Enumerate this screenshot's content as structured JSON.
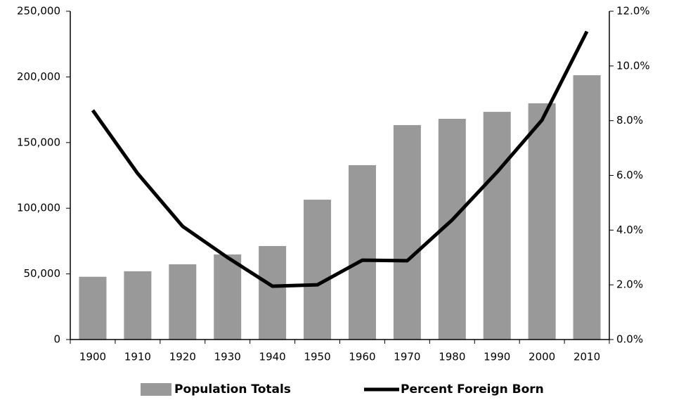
{
  "chart_data": {
    "type": "bar_line",
    "categories": [
      "1900",
      "1910",
      "1920",
      "1930",
      "1940",
      "1950",
      "1960",
      "1970",
      "1980",
      "1990",
      "2000",
      "2010"
    ],
    "series": [
      {
        "name": "Population Totals",
        "type": "bar",
        "color": "#999999",
        "axis": "y",
        "values": [
          47800,
          52000,
          57300,
          64800,
          71200,
          106500,
          132800,
          163300,
          168100,
          173400,
          179900,
          201300
        ]
      },
      {
        "name": "Percent Foreign Born",
        "type": "line",
        "color": "#000000",
        "axis": "y2",
        "values": [
          8.38,
          6.07,
          4.14,
          3.0,
          1.95,
          2.0,
          2.9,
          2.88,
          4.37,
          6.12,
          8.02,
          11.26
        ]
      }
    ],
    "ylim": [
      0,
      250000
    ],
    "yticks": [
      0,
      {
        "value": 50000,
        "label": "50,000"
      },
      {
        "value": 100000,
        "label": "100,000"
      },
      {
        "value": 150000,
        "label": "150,000"
      },
      {
        "value": 200000,
        "label": "200,000"
      },
      {
        "value": 250000,
        "label": "250,000"
      }
    ],
    "y2lim": [
      0,
      12
    ],
    "y2ticks": [
      {
        "value": 0,
        "label": "0.0%"
      },
      {
        "value": 2,
        "label": "2.0%"
      },
      {
        "value": 4,
        "label": "4.0%"
      },
      {
        "value": 6,
        "label": "6.0%"
      },
      {
        "value": 8,
        "label": "8.0%"
      },
      {
        "value": 10,
        "label": "10.0%"
      },
      {
        "value": 12,
        "label": "12.0%"
      }
    ],
    "legend": "bottom"
  }
}
